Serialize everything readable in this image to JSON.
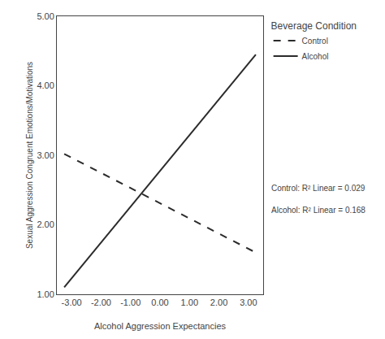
{
  "chart_data": {
    "type": "line",
    "xlabel": "Alcohol Aggression Expectancies",
    "ylabel": "Sexual Aggression Congruent Emotions/Motivations",
    "legend_title": "Beverage Condition",
    "xlim": [
      -3.5,
      3.5
    ],
    "ylim": [
      1.0,
      5.0
    ],
    "xticks": [
      {
        "value": -3,
        "label": "-3.00"
      },
      {
        "value": -2,
        "label": "-2.00"
      },
      {
        "value": -1,
        "label": "-1.00"
      },
      {
        "value": 0,
        "label": "0.00"
      },
      {
        "value": 1,
        "label": "1.00"
      },
      {
        "value": 2,
        "label": "2.00"
      },
      {
        "value": 3,
        "label": "3.00"
      }
    ],
    "yticks": [
      {
        "value": 1,
        "label": "1.00"
      },
      {
        "value": 2,
        "label": "2.00"
      },
      {
        "value": 3,
        "label": "3.00"
      },
      {
        "value": 4,
        "label": "4.00"
      },
      {
        "value": 5,
        "label": "5.00"
      }
    ],
    "series": [
      {
        "name": "Control",
        "color": "#2b2b2b",
        "line_style": "dashed",
        "x": [
          -3.25,
          3.25
        ],
        "values": [
          3.02,
          1.6
        ]
      },
      {
        "name": "Alcohol",
        "color": "#2b2b2b",
        "line_style": "solid",
        "x": [
          -3.25,
          3.25
        ],
        "values": [
          1.1,
          4.45
        ]
      }
    ],
    "annotations": [
      "Control: R² Linear = 0.029",
      "Alcohol: R² Linear = 0.168"
    ],
    "grid": false,
    "legend": "upper right"
  }
}
